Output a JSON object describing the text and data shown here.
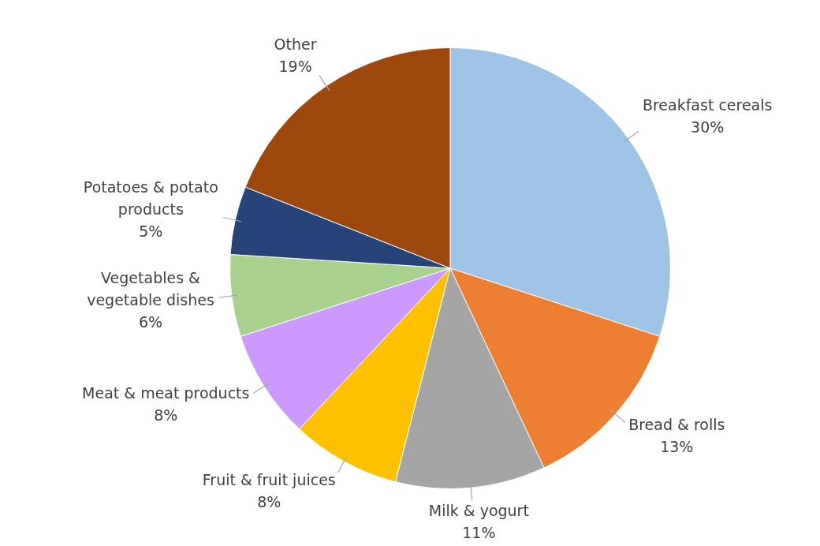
{
  "chart_data": {
    "type": "pie",
    "categories": [
      "Breakfast cereals",
      "Bread & rolls",
      "Milk & yogurt",
      "Fruit & fruit juices",
      "Meat & meat products",
      "Vegetables & vegetable dishes",
      "Potatoes & potato products",
      "Other"
    ],
    "values": [
      30,
      13,
      11,
      8,
      8,
      6,
      5,
      19
    ],
    "colors": [
      "#9dc3e6",
      "#ed7d31",
      "#a5a5a5",
      "#ffc000",
      "#cc99ff",
      "#a9d18e",
      "#264478",
      "#9e480e"
    ],
    "value_labels": [
      "30%",
      "13%",
      "11%",
      "8%",
      "8%",
      "6%",
      "5%",
      "19%"
    ]
  }
}
